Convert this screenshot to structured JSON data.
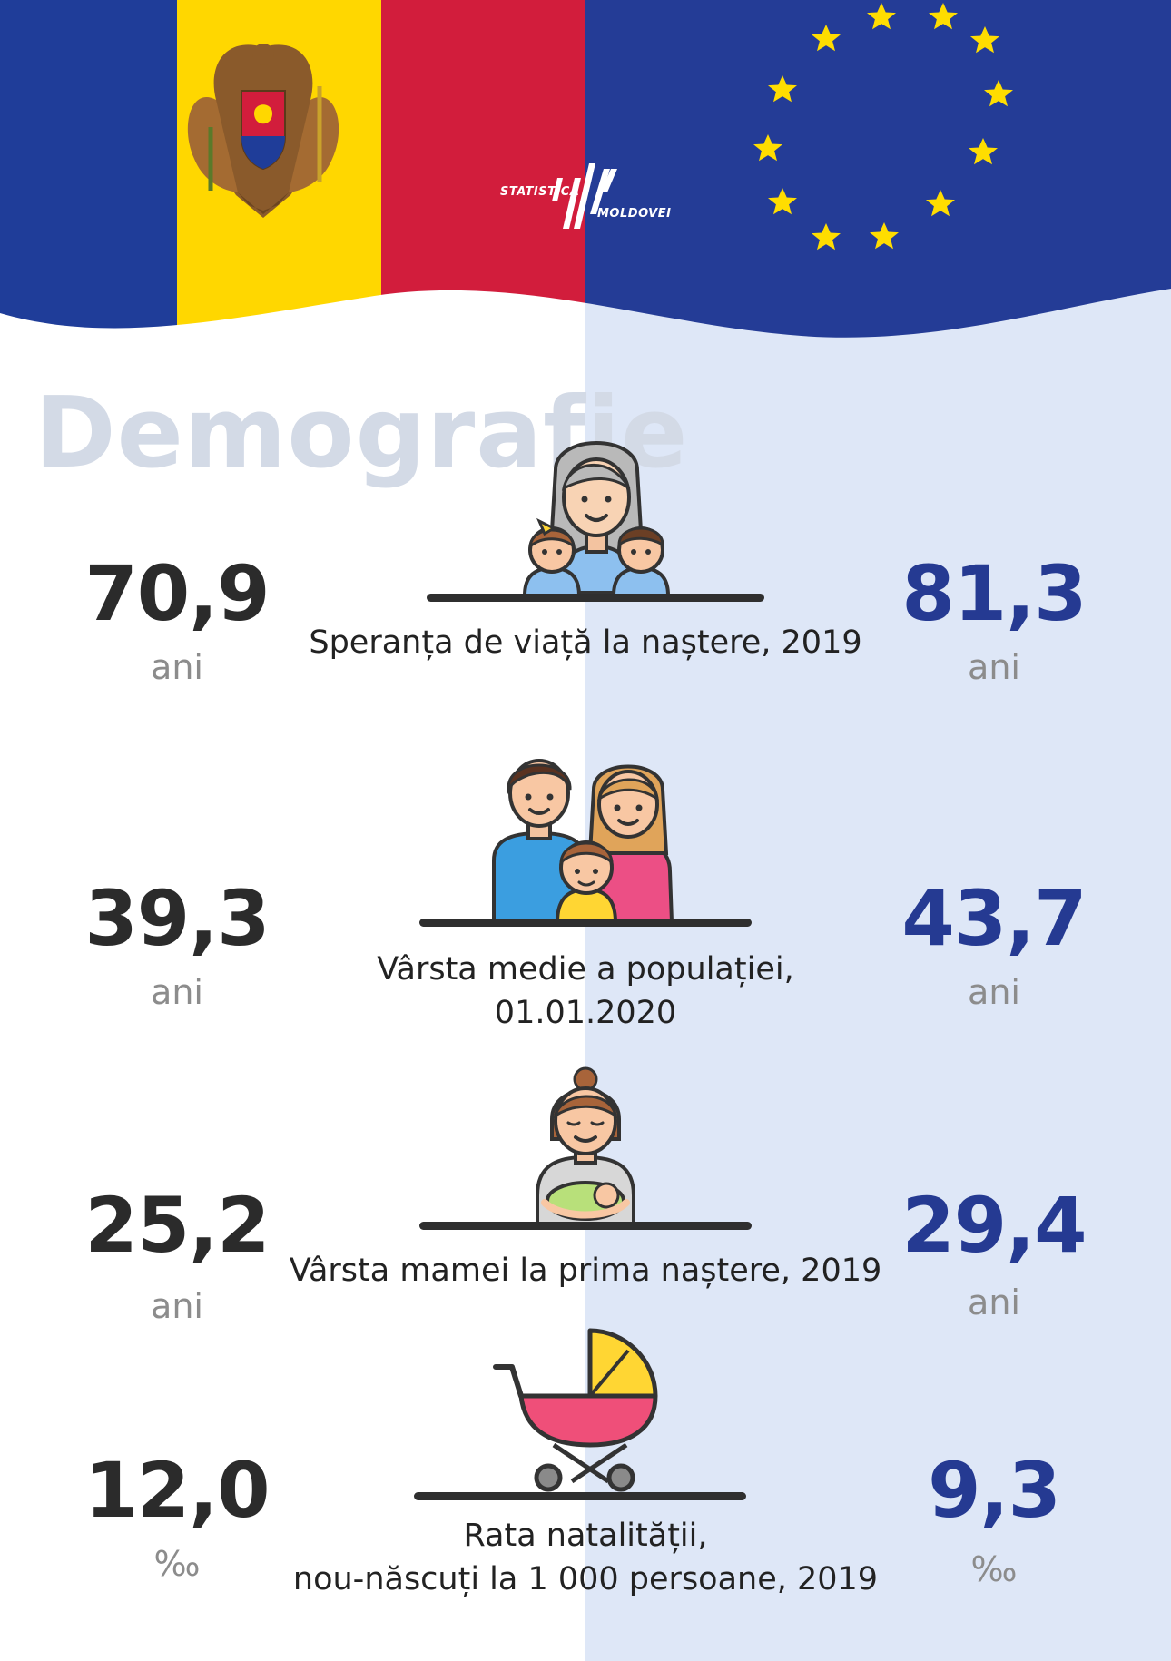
{
  "header": {
    "logo_line1": "STATISTICA",
    "logo_line2": "MOLDOVEI",
    "colors": {
      "flag_blue": "#1f3d99",
      "flag_yellow": "#ffd700",
      "flag_red": "#d21d3c",
      "eu_blue": "#243c96",
      "eu_star": "#ffdd00"
    }
  },
  "title": "Demografie",
  "columns": {
    "moldova_color": "#2b2b2b",
    "eu_color": "#253a92",
    "eu_background": "#dee7f7"
  },
  "indicators": [
    {
      "label": "Speranța de viață la naștere, 2019",
      "moldova_value": "70,9",
      "moldova_unit": "ani",
      "eu_value": "81,3",
      "eu_unit": "ani",
      "icon": "grandmother-with-children-icon"
    },
    {
      "label_line1": "Vârsta medie a populației,",
      "label_line2": "01.01.2020",
      "moldova_value": "39,3",
      "moldova_unit": "ani",
      "eu_value": "43,7",
      "eu_unit": "ani",
      "icon": "family-icon"
    },
    {
      "label": "Vârsta mamei la prima naștere, 2019",
      "moldova_value": "25,2",
      "moldova_unit": "ani",
      "eu_value": "29,4",
      "eu_unit": "ani",
      "icon": "mother-with-baby-icon"
    },
    {
      "label_line1": "Rata natalității,",
      "label_line2": "nou-născuți la 1 000 persoane, 2019",
      "moldova_value": "12,0",
      "moldova_unit": "‰",
      "eu_value": "9,3",
      "eu_unit": "‰",
      "icon": "baby-stroller-icon"
    }
  ]
}
